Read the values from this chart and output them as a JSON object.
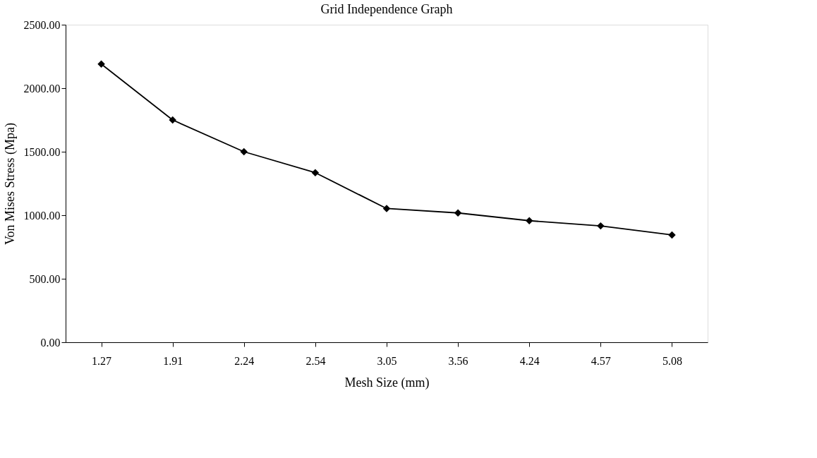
{
  "chart_data": {
    "type": "line",
    "title": "Grid Independence Graph",
    "xlabel": "Mesh Size (mm)",
    "ylabel": "Von Mises Stress (Mpa)",
    "categories": [
      "1.27",
      "1.91",
      "2.24",
      "2.54",
      "3.05",
      "3.56",
      "4.24",
      "4.57",
      "5.08"
    ],
    "series": [
      {
        "color": "#000000",
        "values": [
          2190,
          1750,
          1500,
          1335,
          1053,
          1018,
          957,
          916,
          845
        ]
      }
    ],
    "ylim": [
      0,
      2500
    ],
    "yticks": [
      {
        "value": 0,
        "label": "0.00"
      },
      {
        "value": 500,
        "label": "500.00"
      },
      {
        "value": 1000,
        "label": "1000.00"
      },
      {
        "value": 1500,
        "label": "1500.00"
      },
      {
        "value": 2000,
        "label": "2000.00"
      },
      {
        "value": 2500,
        "label": "2500.00"
      }
    ],
    "grid": false,
    "legend": false,
    "marker": "diamond",
    "line_style": "solid"
  }
}
